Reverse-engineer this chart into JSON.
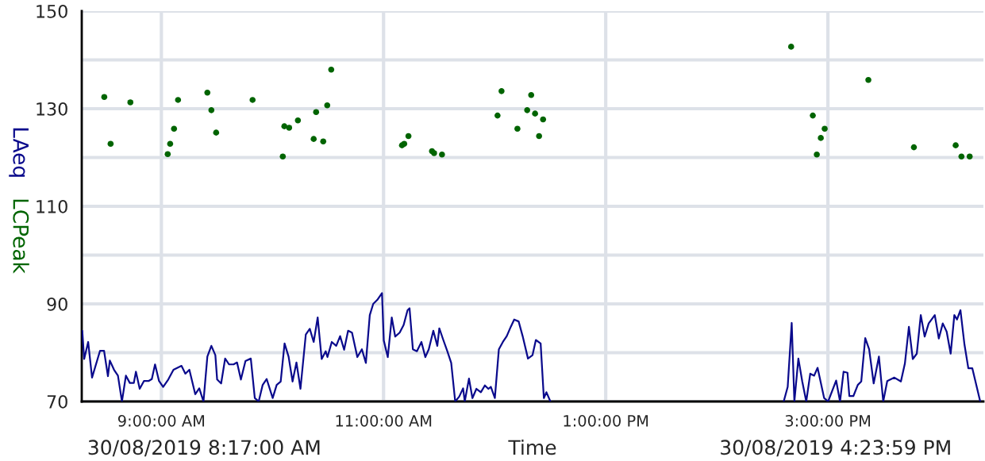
{
  "chart_data": {
    "type": "line",
    "xlabel": "Time",
    "annotations": [
      "30/08/2019 8:17:00 AM",
      "30/08/2019 4:23:59 PM"
    ],
    "xlim": [
      8.2833,
      16.3997
    ],
    "xticks": [
      {
        "value": 9,
        "label": "9:00:00 AM"
      },
      {
        "value": 11,
        "label": "11:00:00 AM"
      },
      {
        "value": 13,
        "label": "1:00:00 PM"
      },
      {
        "value": 15,
        "label": "3:00:00 PM"
      }
    ],
    "ylim": [
      70,
      150
    ],
    "yticks": [
      70,
      {
        "value": 80,
        "label": null
      },
      90,
      {
        "value": 100,
        "label": null
      },
      110,
      {
        "value": 120,
        "label": null
      },
      130,
      {
        "value": 140,
        "label": null
      },
      150
    ],
    "grid": true,
    "series": [
      {
        "name": "LAeq",
        "color": "#0a0a8c",
        "line_style": "solid",
        "x": [
          8.288,
          8.305,
          8.341,
          8.376,
          8.448,
          8.484,
          8.519,
          8.536,
          8.574,
          8.609,
          8.645,
          8.681,
          8.716,
          8.752,
          8.771,
          8.805,
          8.843,
          8.884,
          8.914,
          8.943,
          8.979,
          9.016,
          9.062,
          9.109,
          9.181,
          9.216,
          9.252,
          9.305,
          9.341,
          9.379,
          9.414,
          9.45,
          9.486,
          9.502,
          9.538,
          9.574,
          9.609,
          9.65,
          9.681,
          9.716,
          9.757,
          9.805,
          9.841,
          9.876,
          9.912,
          9.948,
          10.002,
          10.038,
          10.074,
          10.109,
          10.145,
          10.181,
          10.216,
          10.252,
          10.3,
          10.336,
          10.371,
          10.407,
          10.443,
          10.479,
          10.495,
          10.534,
          10.574,
          10.609,
          10.645,
          10.681,
          10.716,
          10.764,
          10.805,
          10.841,
          10.876,
          10.907,
          10.943,
          10.986,
          11.002,
          11.038,
          11.074,
          11.105,
          11.145,
          11.181,
          11.216,
          11.234,
          11.264,
          11.3,
          11.341,
          11.376,
          11.407,
          11.448,
          11.484,
          11.502,
          11.538,
          11.574,
          11.609,
          11.645,
          11.681,
          11.716,
          11.731,
          11.769,
          11.8,
          11.836,
          11.876,
          11.912,
          11.943,
          11.966,
          12.002,
          12.038,
          12.074,
          12.109,
          12.145,
          12.176,
          12.216,
          12.252,
          12.3,
          12.341,
          12.371,
          12.414,
          12.443,
          12.466,
          12.502,
          13.55,
          14.602,
          14.638,
          14.674,
          14.698,
          14.734,
          14.769,
          14.805,
          14.841,
          14.876,
          14.907,
          14.966,
          15.002,
          15.074,
          15.109,
          15.141,
          15.176,
          15.193,
          15.229,
          15.269,
          15.3,
          15.336,
          15.371,
          15.412,
          15.459,
          15.498,
          15.534,
          15.598,
          15.657,
          15.693,
          15.729,
          15.764,
          15.8,
          15.836,
          15.871,
          15.907,
          15.962,
          15.998,
          16.034,
          16.069,
          16.105,
          16.138,
          16.162,
          16.193,
          16.229,
          16.264,
          16.3,
          16.371
        ],
        "values": [
          84.5,
          78.7,
          82.2,
          74.9,
          80.4,
          80.4,
          75.2,
          78.4,
          76.5,
          75.3,
          70,
          75.3,
          73.8,
          73.8,
          76.1,
          72.6,
          74.2,
          74.2,
          74.6,
          77.6,
          74.2,
          73.0,
          74.5,
          76.5,
          77.3,
          75.7,
          76.5,
          71.5,
          72.7,
          70,
          79.2,
          81.4,
          79.5,
          74.5,
          73.7,
          78.8,
          77.6,
          77.6,
          78.0,
          74.5,
          78.3,
          78.8,
          70.7,
          70,
          73.4,
          74.6,
          70.7,
          73.4,
          74.1,
          81.9,
          79.2,
          74.1,
          78.0,
          72.6,
          83.7,
          84.9,
          82.2,
          87.2,
          78.7,
          80.3,
          79.1,
          82.2,
          81.4,
          83.4,
          80.6,
          84.5,
          84.1,
          79.1,
          80.7,
          77.9,
          87.7,
          90.0,
          90.8,
          92.2,
          82.5,
          79.1,
          87.2,
          83.3,
          84.1,
          85.7,
          88.7,
          89.1,
          80.7,
          80.3,
          82.2,
          79.1,
          80.7,
          84.5,
          81.4,
          85.0,
          82.6,
          80.3,
          77.9,
          70,
          71.0,
          72.7,
          70,
          74.7,
          70.7,
          72.6,
          71.9,
          73.3,
          72.6,
          73.0,
          70.7,
          80.7,
          82.2,
          83.4,
          85.3,
          86.8,
          86.4,
          83.4,
          78.8,
          79.5,
          82.6,
          81.9,
          70.7,
          71.9,
          70,
          null,
          70,
          73.0,
          86.1,
          70,
          78.8,
          74.1,
          70,
          75.7,
          75.3,
          76.9,
          70.7,
          70,
          74.3,
          70,
          76.1,
          75.9,
          71.1,
          71.1,
          73.4,
          74.1,
          83.0,
          80.7,
          73.7,
          79.2,
          70,
          74.2,
          74.9,
          74.1,
          77.8,
          85.3,
          78.7,
          79.8,
          87.7,
          83.3,
          86.0,
          87.7,
          82.9,
          86.0,
          84.3,
          79.8,
          87.7,
          86.8,
          88.7,
          81.7,
          76.8,
          76.8,
          70
        ]
      },
      {
        "name": "LCPeak",
        "type": "scatter",
        "color": "#006400",
        "marker": "circle",
        "x": [
          8.486,
          8.543,
          8.721,
          9.057,
          9.079,
          9.114,
          9.15,
          9.414,
          9.45,
          9.493,
          9.821,
          10.093,
          10.107,
          10.15,
          10.229,
          10.371,
          10.393,
          10.457,
          10.493,
          10.529,
          11.166,
          11.186,
          11.224,
          11.436,
          11.455,
          11.526,
          12.026,
          12.062,
          12.205,
          12.293,
          12.329,
          12.364,
          12.4,
          12.436,
          14.669,
          14.864,
          14.9,
          14.936,
          14.971,
          15.364,
          15.774,
          16.15,
          16.202,
          16.276
        ],
        "values": [
          132.4,
          122.8,
          131.3,
          120.7,
          122.8,
          125.9,
          131.8,
          133.3,
          129.7,
          125.1,
          131.8,
          120.2,
          126.4,
          126.1,
          127.6,
          123.8,
          129.3,
          123.3,
          130.7,
          138.0,
          122.5,
          122.8,
          124.4,
          121.3,
          120.9,
          120.6,
          128.6,
          133.6,
          125.9,
          129.7,
          132.8,
          129.0,
          124.4,
          127.8,
          142.7,
          128.6,
          120.6,
          124.0,
          125.9,
          135.9,
          122.1,
          122.5,
          120.2,
          120.2
        ]
      }
    ]
  }
}
